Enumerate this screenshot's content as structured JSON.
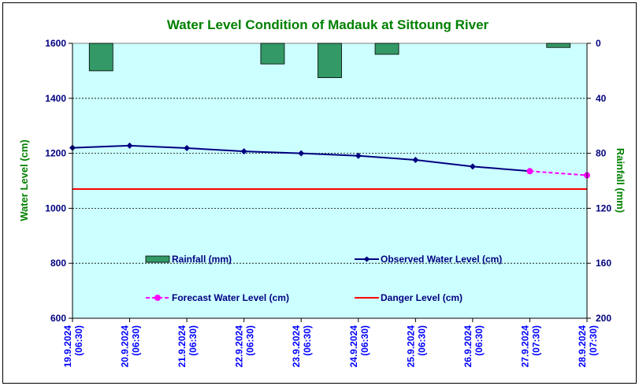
{
  "colors": {
    "plot_bg": "#ccffff",
    "title": "#008000",
    "axis_text": "#000080",
    "axis_title": "#008000",
    "rainfall_fill": "#339966",
    "observed": "#000080",
    "forecast": "#ff00ff",
    "danger": "#ff0000",
    "xtick_text": "#0000ff"
  },
  "chart_data": {
    "type": "line",
    "title": "Water Level Condition of Madauk at Sittoung River",
    "ylabel": "Water Level (cm)",
    "y2label": "Rainfall (mm)",
    "ylim": [
      600,
      1600
    ],
    "y2lim": [
      0,
      200
    ],
    "y2_inverted": true,
    "yticks": [
      "1600",
      "1400",
      "1200",
      "1000",
      "800",
      "600"
    ],
    "y2ticks": [
      "0",
      "40",
      "80",
      "120",
      "160",
      "200"
    ],
    "grid": true,
    "categories": [
      {
        "date": "19.9.2024",
        "time": "(06:30)"
      },
      {
        "date": "20.9.2024",
        "time": "(06:30)"
      },
      {
        "date": "21.9.2024",
        "time": "(06:30)"
      },
      {
        "date": "22.9.2024",
        "time": "(06:30)"
      },
      {
        "date": "23.9.2024",
        "time": "(06:30)"
      },
      {
        "date": "24.9.2024",
        "time": "(06:30)"
      },
      {
        "date": "25.9.2024",
        "time": "(06:30)"
      },
      {
        "date": "26.9.2024",
        "time": "(06:30)"
      },
      {
        "date": "27.9.2024",
        "time": "(07:30)"
      },
      {
        "date": "28.9.2024",
        "time": "(07:30)"
      }
    ],
    "rainfall": [
      20,
      0,
      0,
      15,
      25,
      8,
      0,
      0,
      3,
      null
    ],
    "observed": [
      1220,
      1228,
      1219,
      1207,
      1200,
      1191,
      1176,
      1152,
      1135,
      null
    ],
    "forecast": [
      null,
      null,
      null,
      null,
      null,
      null,
      null,
      null,
      1135,
      1120
    ],
    "danger_level": 1070,
    "legend": {
      "rainfall": "Rainfall (mm)",
      "observed": "Observed Water Level (cm)",
      "forecast": "Forecast Water Level (cm)",
      "danger": "Danger Level (cm)"
    }
  }
}
